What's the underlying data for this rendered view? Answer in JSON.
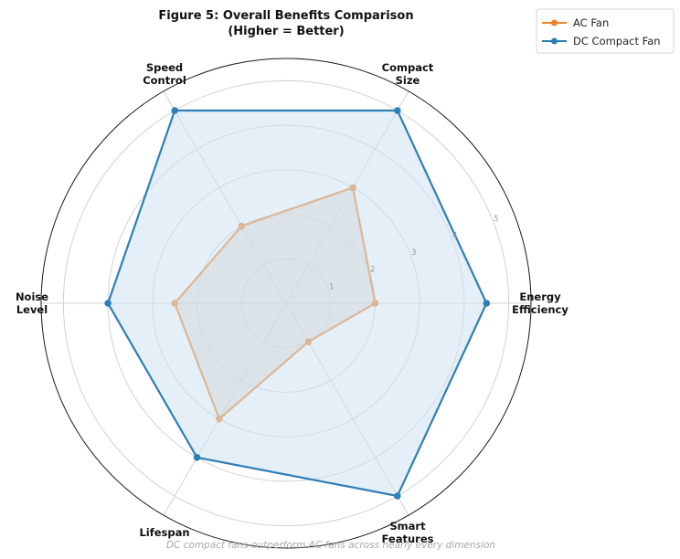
{
  "chart_data": {
    "type": "radar",
    "title": [
      "Figure 5: Overall Benefits Comparison",
      "(Higher = Better)"
    ],
    "axes": [
      [
        "Energy",
        "Efficiency"
      ],
      [
        "Compact",
        "Size"
      ],
      [
        "Speed",
        "Control"
      ],
      [
        "Noise",
        "Level"
      ],
      [
        "Lifespan"
      ],
      [
        "Smart",
        "Features"
      ]
    ],
    "rticks": [
      "1",
      "2",
      "3",
      "4",
      "5"
    ],
    "rlim": [
      0,
      5.5
    ],
    "grid": true,
    "legend_position": "top-right",
    "series": [
      {
        "name": "AC Fan",
        "color": "#e8832a",
        "fill": "#d6d0c4",
        "values": [
          2,
          3,
          2,
          2.5,
          3,
          1
        ]
      },
      {
        "name": "DC Compact Fan",
        "color": "#2f7fb7",
        "fill": "#cfe2f1",
        "values": [
          4.5,
          5,
          5,
          4,
          4,
          5
        ]
      }
    ],
    "caption": "DC compact fans outperform AC fans across nearly every dimension"
  }
}
